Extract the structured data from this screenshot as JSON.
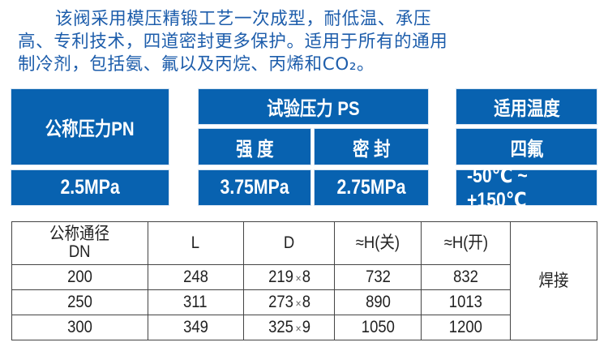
{
  "intro": {
    "lines": [
      "该阀采用模压精锻工艺一次成型，耐低温、承压",
      "高、专利技术，四道密封更多保护。适用于所有的通用",
      "制冷剂，包括氨、氟以及丙烷、丙烯和CO₂。"
    ]
  },
  "specs": {
    "nominal_pressure": {
      "label": "公称压力PN",
      "value": "2.5MPa"
    },
    "test_pressure": {
      "label": "试验压力 PS",
      "strength_label": "强 度",
      "strength_value": "3.75MPa",
      "seal_label": "密 封",
      "seal_value": "2.75MPa"
    },
    "temperature": {
      "label": "适用温度",
      "sub_label": "四氟",
      "value": "-50℃ ~ +150℃"
    },
    "colors": {
      "box": "#0862b0",
      "text": "#1d5dab"
    }
  },
  "table": {
    "headers": [
      "公称通径",
      "DN",
      "L",
      "D",
      "≈H(关)",
      "≈H(开)"
    ],
    "connection": "焊接",
    "rows": [
      {
        "dn": "200",
        "l": "248",
        "d1": "219",
        "x": "×",
        "d2": "8",
        "h_closed": "732",
        "h_open": "832"
      },
      {
        "dn": "250",
        "l": "311",
        "d1": "273",
        "x": "×",
        "d2": "8",
        "h_closed": "890",
        "h_open": "1013"
      },
      {
        "dn": "300",
        "l": "349",
        "d1": "325",
        "x": "×",
        "d2": "9",
        "h_closed": "1050",
        "h_open": "1200"
      }
    ]
  }
}
